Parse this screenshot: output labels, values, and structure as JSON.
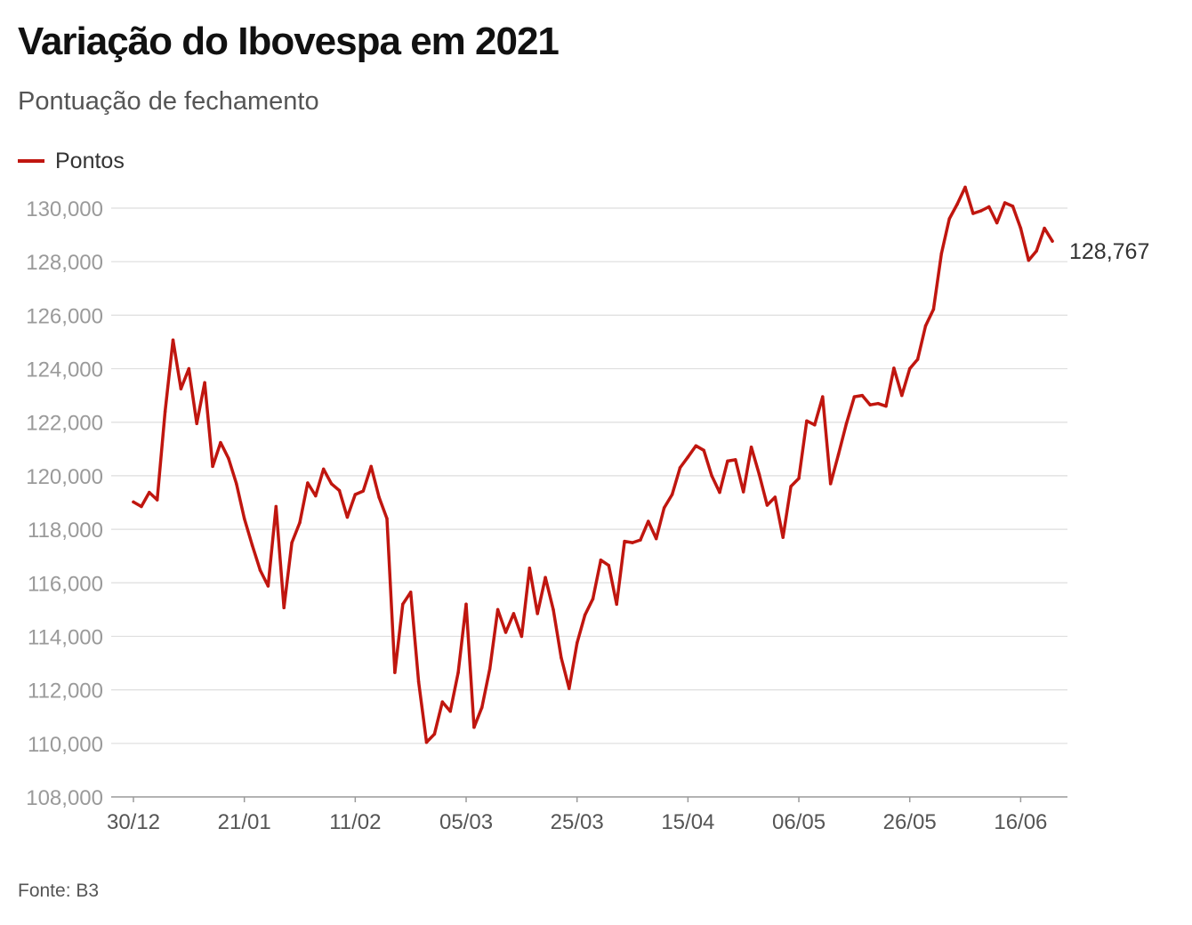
{
  "title": "Variação do Ibovespa em 2021",
  "subtitle": "Pontuação de fechamento",
  "source": "Fonte: B3",
  "chart_data": {
    "type": "line",
    "xlabel": "",
    "ylabel": "",
    "ylim": [
      108000,
      130000
    ],
    "y_ticks": [
      108000,
      110000,
      112000,
      114000,
      116000,
      118000,
      120000,
      122000,
      124000,
      126000,
      128000,
      130000
    ],
    "y_tick_labels": [
      "108,000",
      "110,000",
      "112,000",
      "114,000",
      "116,000",
      "118,000",
      "120,000",
      "122,000",
      "124,000",
      "126,000",
      "128,000",
      "130,000"
    ],
    "x_tick_labels": [
      "30/12",
      "21/01",
      "11/02",
      "05/03",
      "25/03",
      "15/04",
      "06/05",
      "26/05",
      "16/06"
    ],
    "x_tick_indices": [
      0,
      14,
      28,
      42,
      56,
      70,
      84,
      98,
      112
    ],
    "grid": true,
    "legend_position": "top-left",
    "line_color": "#c0160f",
    "end_value_label": "128,767",
    "series": [
      {
        "name": "Pontos",
        "values": [
          119020,
          118850,
          119380,
          119100,
          122400,
          125070,
          123250,
          124000,
          121950,
          123480,
          120350,
          121240,
          120650,
          119700,
          118400,
          117400,
          116470,
          115880,
          118850,
          115070,
          117500,
          118250,
          119730,
          119250,
          120250,
          119700,
          119450,
          118450,
          119300,
          119430,
          120350,
          119200,
          118400,
          112650,
          115200,
          115650,
          112300,
          110040,
          110350,
          111550,
          111200,
          112650,
          115200,
          110600,
          111350,
          112800,
          115000,
          114150,
          114850,
          114000,
          116550,
          114850,
          116200,
          115000,
          113200,
          112050,
          113750,
          114800,
          115400,
          116850,
          116650,
          115200,
          117550,
          117500,
          117600,
          118300,
          117650,
          118800,
          119300,
          120300,
          120700,
          121120,
          120950,
          120000,
          119380,
          120550,
          120600,
          119400,
          121070,
          120050,
          118900,
          119200,
          117700,
          119600,
          119900,
          122050,
          121900,
          122950,
          119700,
          120800,
          121950,
          122950,
          123000,
          122650,
          122700,
          122600,
          124020,
          123000,
          124000,
          124350,
          125600,
          126220,
          128300,
          129600,
          130150,
          130780,
          129800,
          129900,
          130050,
          129450,
          130200,
          130070,
          129250,
          128050,
          128400,
          129250,
          128767
        ]
      }
    ]
  }
}
